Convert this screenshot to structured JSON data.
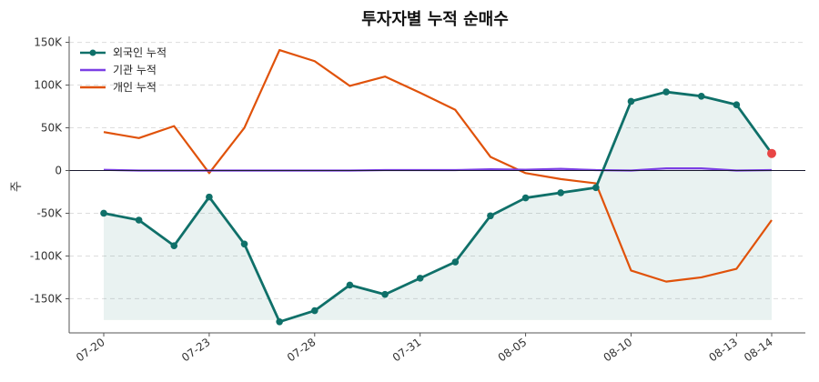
{
  "chart_data": {
    "type": "line",
    "title": "투자자별 누적 순매수",
    "xlabel": "",
    "ylabel": "주",
    "x": [
      "07-20",
      "07-21",
      "07-22",
      "07-23",
      "07-24",
      "07-27",
      "07-28",
      "07-29",
      "07-30",
      "07-31",
      "08-03",
      "08-04",
      "08-05",
      "08-06",
      "08-07",
      "08-10",
      "08-11",
      "08-12",
      "08-13",
      "08-14"
    ],
    "x_tick_labels": [
      "07-20",
      "07-23",
      "07-28",
      "07-31",
      "08-05",
      "08-10",
      "08-13",
      "08-14"
    ],
    "ylim": [
      -190000,
      157000
    ],
    "y_ticks": [
      -150000,
      -100000,
      -50000,
      0,
      50000,
      100000,
      150000
    ],
    "y_tick_labels": [
      "-150K",
      "-100K",
      "-50K",
      "0",
      "50K",
      "100K",
      "150K"
    ],
    "grid": "horizontal dashed",
    "legend_position": "top-left",
    "series": [
      {
        "name": "외국인 누적",
        "color": "#0f7069",
        "marker": "circle",
        "fill_to": -175000,
        "values": [
          -50000,
          -58000,
          -88000,
          -31000,
          -86000,
          -177000,
          -164000,
          -134000,
          -145000,
          -126000,
          -107000,
          -53000,
          -32000,
          -26000,
          -20000,
          81000,
          92000,
          87000,
          77000,
          20000
        ]
      },
      {
        "name": "기관 누적",
        "color": "#7b3fe4",
        "values": [
          800,
          0,
          0,
          0,
          0,
          0,
          0,
          0,
          500,
          500,
          500,
          1500,
          1000,
          2000,
          500,
          0,
          2500,
          2500,
          0,
          500
        ]
      },
      {
        "name": "개인 누적",
        "color": "#e0520a",
        "values": [
          45000,
          38000,
          52000,
          -3000,
          50000,
          141000,
          128000,
          99000,
          110000,
          91000,
          71000,
          16000,
          -3000,
          -10000,
          -15000,
          -117000,
          -130000,
          -125000,
          -115000,
          -58000
        ]
      }
    ],
    "highlight_point": {
      "series": "외국인 누적",
      "x": "08-14",
      "y": 20000,
      "color": "#e84545"
    }
  }
}
